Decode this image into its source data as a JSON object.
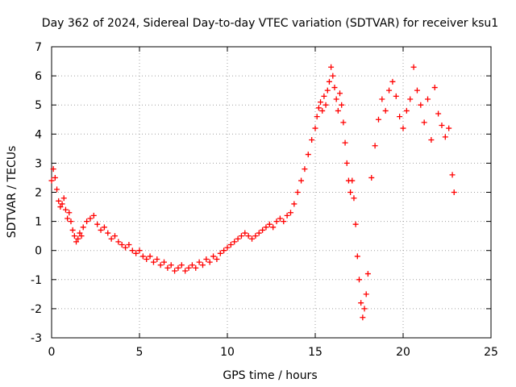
{
  "chart_data": {
    "type": "scatter",
    "title": "Day 362 of 2024, Sidereal Day-to-day VTEC variation (SDTVAR) for receiver ksu1",
    "xlabel": "GPS time / hours",
    "ylabel": "SDTVAR / TECUs",
    "xlim": [
      0,
      25
    ],
    "ylim": [
      -3,
      7
    ],
    "xticks": [
      0,
      5,
      10,
      15,
      20,
      25
    ],
    "yticks": [
      -3,
      -2,
      -1,
      0,
      1,
      2,
      3,
      4,
      5,
      6,
      7
    ],
    "xtick_labels": [
      "0",
      "5",
      "10",
      "15",
      "20",
      "25"
    ],
    "ytick_labels": [
      "-3",
      "-2",
      "-1",
      "0",
      "1",
      "2",
      "3",
      "4",
      "5",
      "6",
      "7"
    ],
    "grid": true,
    "marker": "+",
    "series": [
      {
        "name": "SDTVAR",
        "color": "#ff0000",
        "x": [
          0.0,
          0.1,
          0.2,
          0.3,
          0.4,
          0.5,
          0.6,
          0.7,
          0.8,
          0.9,
          1.0,
          1.1,
          1.2,
          1.3,
          1.4,
          1.5,
          1.6,
          1.7,
          1.8,
          2.0,
          2.2,
          2.4,
          2.6,
          2.8,
          3.0,
          3.2,
          3.4,
          3.6,
          3.8,
          4.0,
          4.2,
          4.4,
          4.6,
          4.8,
          5.0,
          5.2,
          5.4,
          5.6,
          5.8,
          6.0,
          6.2,
          6.4,
          6.6,
          6.8,
          7.0,
          7.2,
          7.4,
          7.6,
          7.8,
          8.0,
          8.2,
          8.4,
          8.6,
          8.8,
          9.0,
          9.2,
          9.4,
          9.6,
          9.8,
          10.0,
          10.2,
          10.4,
          10.6,
          10.8,
          11.0,
          11.2,
          11.4,
          11.6,
          11.8,
          12.0,
          12.2,
          12.4,
          12.6,
          12.8,
          13.0,
          13.2,
          13.4,
          13.6,
          13.8,
          14.0,
          14.2,
          14.4,
          14.6,
          14.8,
          15.0,
          15.1,
          15.2,
          15.3,
          15.4,
          15.5,
          15.6,
          15.7,
          15.8,
          15.9,
          16.0,
          16.1,
          16.2,
          16.3,
          16.4,
          16.5,
          16.6,
          16.7,
          16.8,
          16.9,
          17.0,
          17.1,
          17.2,
          17.3,
          17.4,
          17.5,
          17.6,
          17.7,
          17.8,
          17.9,
          18.0,
          18.2,
          18.4,
          18.6,
          18.8,
          19.0,
          19.2,
          19.4,
          19.6,
          19.8,
          20.0,
          20.2,
          20.4,
          20.6,
          20.8,
          21.0,
          21.2,
          21.4,
          21.6,
          21.8,
          22.0,
          22.2,
          22.4,
          22.6,
          22.8,
          22.9
        ],
        "y": [
          2.4,
          2.8,
          2.5,
          2.1,
          1.7,
          1.5,
          1.6,
          1.8,
          1.4,
          1.1,
          1.3,
          1.0,
          0.7,
          0.5,
          0.3,
          0.4,
          0.6,
          0.5,
          0.8,
          1.0,
          1.1,
          1.2,
          0.9,
          0.7,
          0.8,
          0.6,
          0.4,
          0.5,
          0.3,
          0.2,
          0.1,
          0.2,
          0.0,
          -0.1,
          0.0,
          -0.2,
          -0.3,
          -0.2,
          -0.4,
          -0.3,
          -0.5,
          -0.4,
          -0.6,
          -0.5,
          -0.7,
          -0.6,
          -0.5,
          -0.7,
          -0.6,
          -0.5,
          -0.6,
          -0.4,
          -0.5,
          -0.3,
          -0.4,
          -0.2,
          -0.3,
          -0.1,
          0.0,
          0.1,
          0.2,
          0.3,
          0.4,
          0.5,
          0.6,
          0.5,
          0.4,
          0.5,
          0.6,
          0.7,
          0.8,
          0.9,
          0.8,
          1.0,
          1.1,
          1.0,
          1.2,
          1.3,
          1.6,
          2.0,
          2.4,
          2.8,
          3.3,
          3.8,
          4.2,
          4.6,
          4.9,
          5.1,
          4.8,
          5.3,
          5.0,
          5.5,
          5.8,
          6.3,
          6.0,
          5.6,
          5.2,
          4.8,
          5.4,
          5.0,
          4.4,
          3.7,
          3.0,
          2.4,
          2.0,
          2.4,
          1.8,
          0.9,
          -0.2,
          -1.0,
          -1.8,
          -2.3,
          -2.0,
          -1.5,
          -0.8,
          2.5,
          3.6,
          4.5,
          5.2,
          4.8,
          5.5,
          5.8,
          5.3,
          4.6,
          4.2,
          4.8,
          5.2,
          6.3,
          5.5,
          5.0,
          4.4,
          5.2,
          3.8,
          5.6,
          4.7,
          4.3,
          3.9,
          4.2,
          2.6,
          2.0
        ]
      }
    ]
  }
}
